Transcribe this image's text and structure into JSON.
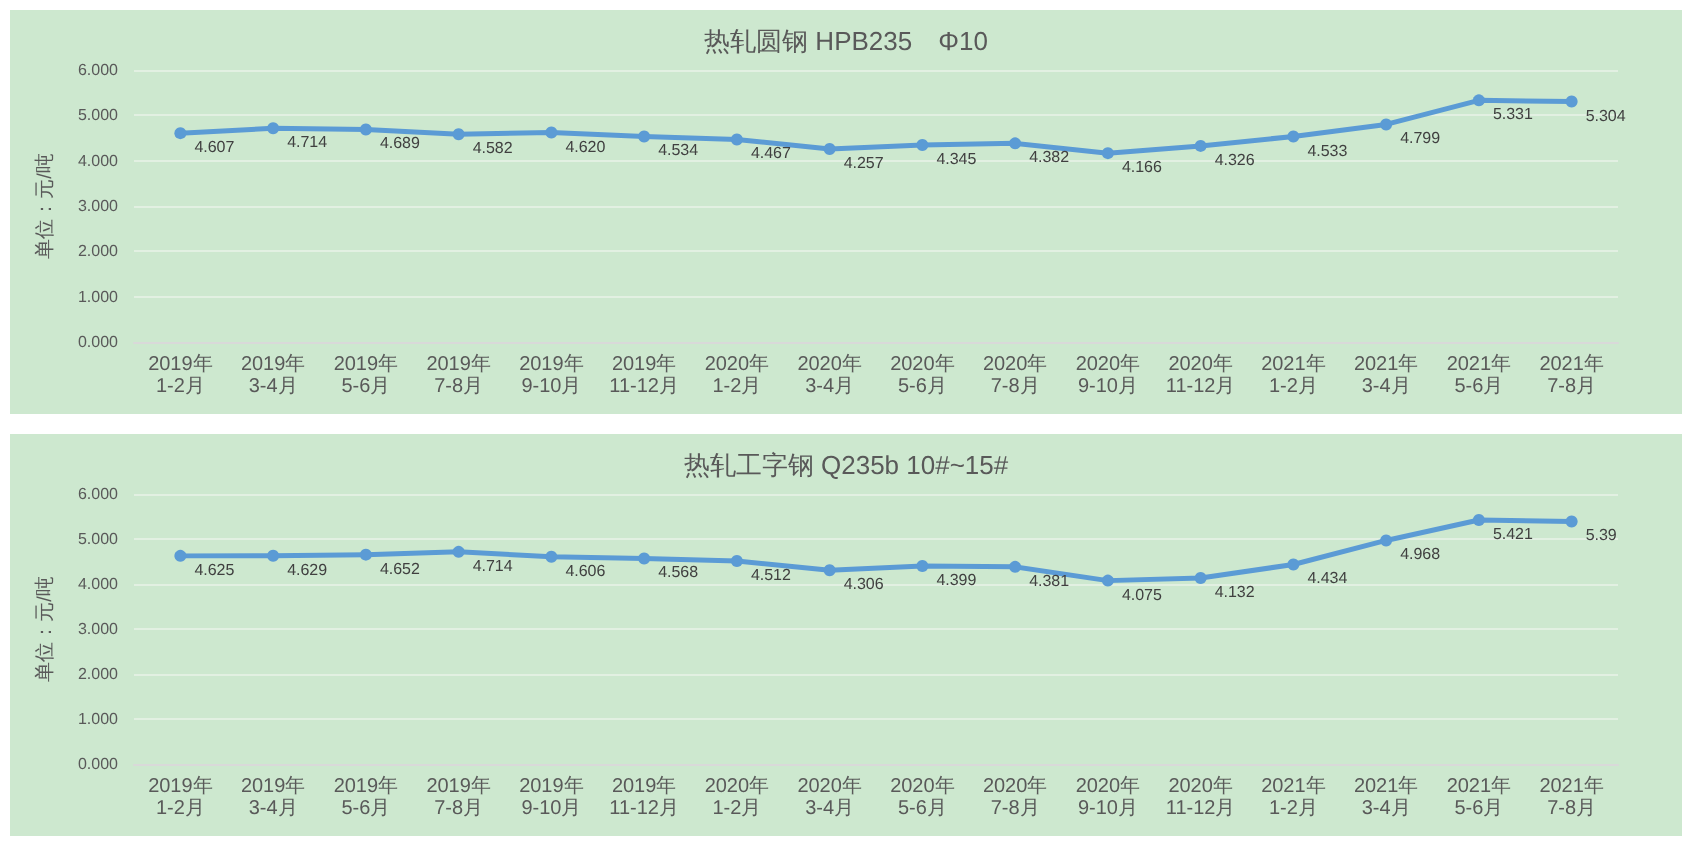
{
  "chart_data": [
    {
      "type": "line",
      "title": "热轧圆钢 HPB235　Φ10",
      "ylabel": "单位：元/吨",
      "categories": [
        "2019年1-2月",
        "2019年3-4月",
        "2019年5-6月",
        "2019年7-8月",
        "2019年9-10月",
        "2019年11-12月",
        "2020年1-2月",
        "2020年3-4月",
        "2020年5-6月",
        "2020年7-8月",
        "2020年9-10月",
        "2020年11-12月",
        "2021年1-2月",
        "2021年3-4月",
        "2021年5-6月",
        "2021年7-8月"
      ],
      "values": [
        4.607,
        4.714,
        4.689,
        4.582,
        4.62,
        4.534,
        4.467,
        4.257,
        4.345,
        4.382,
        4.166,
        4.326,
        4.533,
        4.799,
        5.331,
        5.304
      ],
      "value_labels": [
        "4.607",
        "4.714",
        "4.689",
        "4.582",
        "4.620",
        "4.534",
        "4.467",
        "4.257",
        "4.345",
        "4.382",
        "4.166",
        "4.326",
        "4.533",
        "4.799",
        "5.331",
        "5.304"
      ],
      "color": "#5b9bd5",
      "marker": "circle",
      "line_style": "solid",
      "grid": "y",
      "ylim": [
        0,
        6
      ],
      "yticks": [
        {
          "value": 0,
          "label": "0.000"
        },
        {
          "value": 1,
          "label": "1.000"
        },
        {
          "value": 2,
          "label": "2.000"
        },
        {
          "value": 3,
          "label": "3.000"
        },
        {
          "value": 4,
          "label": "4.000"
        },
        {
          "value": 5,
          "label": "5.000"
        },
        {
          "value": 6,
          "label": "6.000"
        }
      ]
    },
    {
      "type": "line",
      "title": "热轧工字钢 Q235b 10#~15#",
      "ylabel": "单位：元/吨",
      "categories": [
        "2019年1-2月",
        "2019年3-4月",
        "2019年5-6月",
        "2019年7-8月",
        "2019年9-10月",
        "2019年11-12月",
        "2020年1-2月",
        "2020年3-4月",
        "2020年5-6月",
        "2020年7-8月",
        "2020年9-10月",
        "2020年11-12月",
        "2021年1-2月",
        "2021年3-4月",
        "2021年5-6月",
        "2021年7-8月"
      ],
      "values": [
        4.625,
        4.629,
        4.652,
        4.714,
        4.606,
        4.568,
        4.512,
        4.306,
        4.399,
        4.381,
        4.075,
        4.132,
        4.434,
        4.968,
        5.421,
        5.39
      ],
      "value_labels": [
        "4.625",
        "4.629",
        "4.652",
        "4.714",
        "4.606",
        "4.568",
        "4.512",
        "4.306",
        "4.399",
        "4.381",
        "4.075",
        "4.132",
        "4.434",
        "4.968",
        "5.421",
        "5.39"
      ],
      "color": "#5b9bd5",
      "marker": "circle",
      "line_style": "solid",
      "grid": "y",
      "ylim": [
        0,
        6
      ],
      "yticks": [
        {
          "value": 0,
          "label": "0.000"
        },
        {
          "value": 1,
          "label": "1.000"
        },
        {
          "value": 2,
          "label": "2.000"
        },
        {
          "value": 3,
          "label": "3.000"
        },
        {
          "value": 4,
          "label": "4.000"
        },
        {
          "value": 5,
          "label": "5.000"
        },
        {
          "value": 6,
          "label": "6.000"
        }
      ]
    }
  ]
}
